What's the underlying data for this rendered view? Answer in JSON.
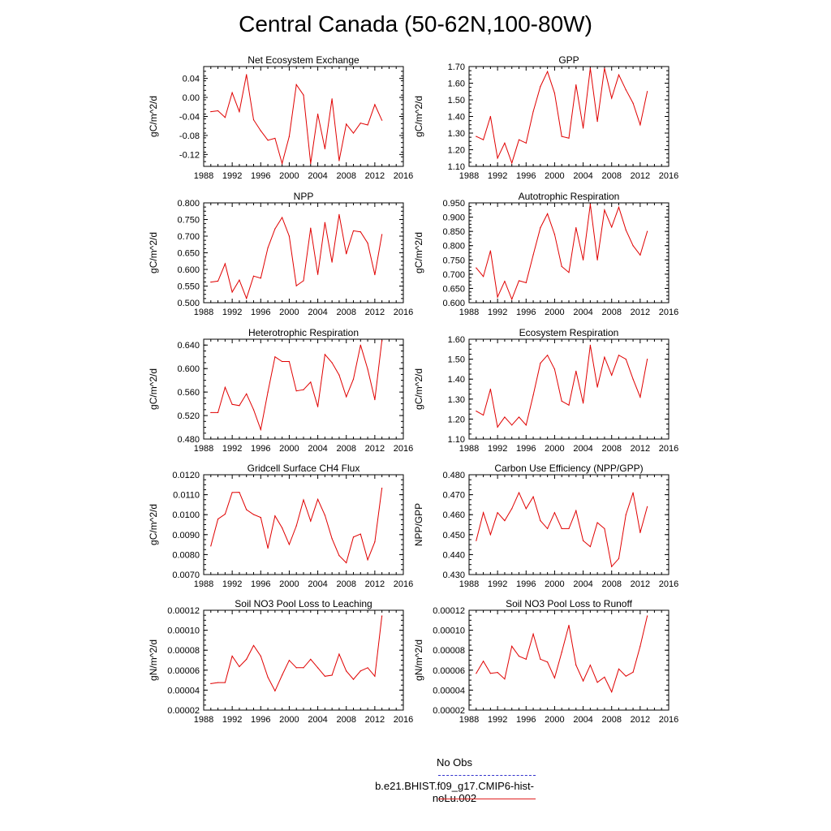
{
  "title": "Central Canada (50-62N,100-80W)",
  "legend": [
    {
      "label": "No Obs",
      "color": "#3333cc",
      "dash": "dashed"
    },
    {
      "label": "b.e21.BHIST.f09_g17.CMIP6-hist-noLu.002",
      "color": "#e02020",
      "dash": "solid"
    }
  ],
  "colors": {
    "series": "#e00000",
    "axis": "#000000"
  },
  "chart_data": [
    {
      "type": "line",
      "title": "Net Ecosystem Exchange",
      "ylabel": "gC/m^2/d",
      "xlim": [
        1988,
        2016
      ],
      "xticks": [
        1988,
        1992,
        1996,
        2000,
        2004,
        2008,
        2012,
        2016
      ],
      "ylim": [
        -0.145,
        0.065
      ],
      "yticks": [
        -0.12,
        -0.08,
        -0.04,
        0.0,
        0.04
      ],
      "ydecimals": 2,
      "series": [
        {
          "x": [
            1989,
            1990,
            1991,
            1992,
            1993,
            1994,
            1995,
            1996,
            1997,
            1998,
            1999,
            2000,
            2001,
            2002,
            2003,
            2004,
            2005,
            2006,
            2007,
            2008,
            2009,
            2010,
            2011,
            2012,
            2013
          ],
          "values": [
            -0.03,
            -0.028,
            -0.042,
            0.01,
            -0.03,
            0.048,
            -0.047,
            -0.07,
            -0.09,
            -0.086,
            -0.139,
            -0.082,
            0.027,
            0.005,
            -0.139,
            -0.035,
            -0.108,
            -0.003,
            -0.133,
            -0.056,
            -0.075,
            -0.054,
            -0.058,
            -0.015,
            -0.048
          ]
        }
      ]
    },
    {
      "type": "line",
      "title": "GPP",
      "ylabel": "gC/m^2/d",
      "xlim": [
        1988,
        2016
      ],
      "xticks": [
        1988,
        1992,
        1996,
        2000,
        2004,
        2008,
        2012,
        2016
      ],
      "ylim": [
        1.1,
        1.7
      ],
      "yticks": [
        1.1,
        1.2,
        1.3,
        1.4,
        1.5,
        1.6,
        1.7
      ],
      "ydecimals": 2,
      "series": [
        {
          "x": [
            1989,
            1990,
            1991,
            1992,
            1993,
            1994,
            1995,
            1996,
            1997,
            1998,
            1999,
            2000,
            2001,
            2002,
            2003,
            2004,
            2005,
            2006,
            2007,
            2008,
            2009,
            2010,
            2011,
            2012,
            2013
          ],
          "values": [
            1.28,
            1.26,
            1.4,
            1.15,
            1.24,
            1.12,
            1.26,
            1.24,
            1.43,
            1.58,
            1.67,
            1.54,
            1.28,
            1.27,
            1.59,
            1.33,
            1.69,
            1.37,
            1.69,
            1.51,
            1.65,
            1.56,
            1.48,
            1.35,
            1.55
          ]
        }
      ]
    },
    {
      "type": "line",
      "title": "NPP",
      "ylabel": "gC/m^2/d",
      "xlim": [
        1988,
        2016
      ],
      "xticks": [
        1988,
        1992,
        1996,
        2000,
        2004,
        2008,
        2012,
        2016
      ],
      "ylim": [
        0.5,
        0.8
      ],
      "yticks": [
        0.5,
        0.55,
        0.6,
        0.65,
        0.7,
        0.75,
        0.8
      ],
      "ydecimals": 3,
      "series": [
        {
          "x": [
            1989,
            1990,
            1991,
            1992,
            1993,
            1994,
            1995,
            1996,
            1997,
            1998,
            1999,
            2000,
            2001,
            2002,
            2003,
            2004,
            2005,
            2006,
            2007,
            2008,
            2009,
            2010,
            2011,
            2012,
            2013
          ],
          "values": [
            0.562,
            0.565,
            0.617,
            0.532,
            0.568,
            0.513,
            0.58,
            0.574,
            0.665,
            0.722,
            0.756,
            0.7,
            0.551,
            0.566,
            0.724,
            0.585,
            0.741,
            0.622,
            0.765,
            0.647,
            0.716,
            0.713,
            0.679,
            0.584,
            0.705
          ]
        }
      ]
    },
    {
      "type": "line",
      "title": "Autotrophic Respiration",
      "ylabel": "gC/m^2/d",
      "xlim": [
        1988,
        2016
      ],
      "xticks": [
        1988,
        1992,
        1996,
        2000,
        2004,
        2008,
        2012,
        2016
      ],
      "ylim": [
        0.6,
        0.95
      ],
      "yticks": [
        0.6,
        0.65,
        0.7,
        0.75,
        0.8,
        0.85,
        0.9,
        0.95
      ],
      "ydecimals": 3,
      "series": [
        {
          "x": [
            1989,
            1990,
            1991,
            1992,
            1993,
            1994,
            1995,
            1996,
            1997,
            1998,
            1999,
            2000,
            2001,
            2002,
            2003,
            2004,
            2005,
            2006,
            2007,
            2008,
            2009,
            2010,
            2011,
            2012,
            2013
          ],
          "values": [
            0.722,
            0.692,
            0.782,
            0.62,
            0.675,
            0.612,
            0.677,
            0.67,
            0.768,
            0.863,
            0.912,
            0.84,
            0.727,
            0.706,
            0.863,
            0.75,
            0.945,
            0.75,
            0.925,
            0.865,
            0.935,
            0.855,
            0.8,
            0.767,
            0.85
          ]
        }
      ]
    },
    {
      "type": "line",
      "title": "Heterotrophic Respiration",
      "ylabel": "gC/m^2/d",
      "xlim": [
        1988,
        2016
      ],
      "xticks": [
        1988,
        1992,
        1996,
        2000,
        2004,
        2008,
        2012,
        2016
      ],
      "ylim": [
        0.48,
        0.65
      ],
      "yticks": [
        0.48,
        0.52,
        0.56,
        0.6,
        0.64
      ],
      "ydecimals": 3,
      "series": [
        {
          "x": [
            1989,
            1990,
            1991,
            1992,
            1993,
            1994,
            1995,
            1996,
            1997,
            1998,
            1999,
            2000,
            2001,
            2002,
            2003,
            2004,
            2005,
            2006,
            2007,
            2008,
            2009,
            2010,
            2011,
            2012,
            2013
          ],
          "values": [
            0.525,
            0.525,
            0.568,
            0.539,
            0.537,
            0.557,
            0.53,
            0.496,
            0.56,
            0.62,
            0.612,
            0.612,
            0.562,
            0.564,
            0.577,
            0.535,
            0.624,
            0.61,
            0.589,
            0.552,
            0.582,
            0.64,
            0.599,
            0.547,
            0.648
          ]
        }
      ]
    },
    {
      "type": "line",
      "title": "Ecosystem Respiration",
      "ylabel": "gC/m^2/d",
      "xlim": [
        1988,
        2016
      ],
      "xticks": [
        1988,
        1992,
        1996,
        2000,
        2004,
        2008,
        2012,
        2016
      ],
      "ylim": [
        1.1,
        1.6
      ],
      "yticks": [
        1.1,
        1.2,
        1.3,
        1.4,
        1.5,
        1.6
      ],
      "ydecimals": 2,
      "series": [
        {
          "x": [
            1989,
            1990,
            1991,
            1992,
            1993,
            1994,
            1995,
            1996,
            1997,
            1998,
            1999,
            2000,
            2001,
            2002,
            2003,
            2004,
            2005,
            2006,
            2007,
            2008,
            2009,
            2010,
            2011,
            2012,
            2013
          ],
          "values": [
            1.24,
            1.22,
            1.35,
            1.16,
            1.21,
            1.17,
            1.21,
            1.17,
            1.32,
            1.48,
            1.52,
            1.45,
            1.29,
            1.27,
            1.44,
            1.28,
            1.57,
            1.36,
            1.51,
            1.42,
            1.52,
            1.5,
            1.4,
            1.31,
            1.5
          ]
        }
      ]
    },
    {
      "type": "line",
      "title": "Gridcell Surface CH4 Flux",
      "ylabel": "gC/m^2/d",
      "xlim": [
        1988,
        2016
      ],
      "xticks": [
        1988,
        1992,
        1996,
        2000,
        2004,
        2008,
        2012,
        2016
      ],
      "ylim": [
        0.007,
        0.012
      ],
      "yticks": [
        0.007,
        0.008,
        0.009,
        0.01,
        0.011,
        0.012
      ],
      "ydecimals": 4,
      "series": [
        {
          "x": [
            1989,
            1990,
            1991,
            1992,
            1993,
            1994,
            1995,
            1996,
            1997,
            1998,
            1999,
            2000,
            2001,
            2002,
            2003,
            2004,
            2005,
            2006,
            2007,
            2008,
            2009,
            2010,
            2011,
            2012,
            2013
          ],
          "values": [
            0.00843,
            0.00978,
            0.01003,
            0.01111,
            0.01112,
            0.01025,
            0.01001,
            0.00986,
            0.00832,
            0.00994,
            0.00934,
            0.00851,
            0.00944,
            0.01074,
            0.00968,
            0.01077,
            0.00997,
            0.0088,
            0.00795,
            0.00759,
            0.00888,
            0.00903,
            0.00774,
            0.00864,
            0.01133
          ]
        }
      ]
    },
    {
      "type": "line",
      "title": "Carbon Use Efficiency (NPP/GPP)",
      "ylabel": "NPP/GPP",
      "xlim": [
        1988,
        2016
      ],
      "xticks": [
        1988,
        1992,
        1996,
        2000,
        2004,
        2008,
        2012,
        2016
      ],
      "ylim": [
        0.43,
        0.48
      ],
      "yticks": [
        0.43,
        0.44,
        0.45,
        0.46,
        0.47,
        0.48
      ],
      "ydecimals": 3,
      "series": [
        {
          "x": [
            1989,
            1990,
            1991,
            1992,
            1993,
            1994,
            1995,
            1996,
            1997,
            1998,
            1999,
            2000,
            2001,
            2002,
            2003,
            2004,
            2005,
            2006,
            2007,
            2008,
            2009,
            2010,
            2011,
            2012,
            2013
          ],
          "values": [
            0.447,
            0.461,
            0.45,
            0.461,
            0.457,
            0.463,
            0.471,
            0.463,
            0.469,
            0.457,
            0.453,
            0.461,
            0.453,
            0.453,
            0.462,
            0.447,
            0.444,
            0.456,
            0.453,
            0.434,
            0.438,
            0.46,
            0.471,
            0.451,
            0.464
          ]
        }
      ]
    },
    {
      "type": "line",
      "title": "Soil NO3 Pool Loss to Leaching",
      "ylabel": "gN/m^2/d",
      "xlim": [
        1988,
        2016
      ],
      "xticks": [
        1988,
        1992,
        1996,
        2000,
        2004,
        2008,
        2012,
        2016
      ],
      "ylim": [
        2e-05,
        0.00012
      ],
      "yticks": [
        2e-05,
        4e-05,
        6e-05,
        8e-05,
        0.0001,
        0.00012
      ],
      "ydecimals": 5,
      "series": [
        {
          "x": [
            1989,
            1990,
            1991,
            1992,
            1993,
            1994,
            1995,
            1996,
            1997,
            1998,
            1999,
            2000,
            2001,
            2002,
            2003,
            2004,
            2005,
            2006,
            2007,
            2008,
            2009,
            2010,
            2011,
            2012,
            2013
          ],
          "values": [
            4.65e-05,
            4.76e-05,
            4.76e-05,
            7.41e-05,
            6.35e-05,
            7.09e-05,
            8.47e-05,
            7.41e-05,
            5.29e-05,
            3.92e-05,
            5.5e-05,
            6.98e-05,
            6.24e-05,
            6.24e-05,
            7.09e-05,
            6.24e-05,
            5.39e-05,
            5.5e-05,
            7.61e-05,
            5.92e-05,
            5.08e-05,
            5.92e-05,
            6.24e-05,
            5.39e-05,
            0.0001143
          ]
        }
      ]
    },
    {
      "type": "line",
      "title": "Soil NO3 Pool Loss to Runoff",
      "ylabel": "gN/m^2/d",
      "xlim": [
        1988,
        2016
      ],
      "xticks": [
        1988,
        1992,
        1996,
        2000,
        2004,
        2008,
        2012,
        2016
      ],
      "ylim": [
        2e-05,
        0.00012
      ],
      "yticks": [
        2e-05,
        4e-05,
        6e-05,
        8e-05,
        0.0001,
        0.00012
      ],
      "ydecimals": 5,
      "series": [
        {
          "x": [
            1989,
            1990,
            1991,
            1992,
            1993,
            1994,
            1995,
            1996,
            1997,
            1998,
            1999,
            2000,
            2001,
            2002,
            2003,
            2004,
            2005,
            2006,
            2007,
            2008,
            2009,
            2010,
            2011,
            2012,
            2013
          ],
          "values": [
            5.68e-05,
            6.9e-05,
            5.68e-05,
            5.77e-05,
            5.11e-05,
            8.4e-05,
            7.4e-05,
            7.1e-05,
            9.62e-05,
            7.1e-05,
            6.81e-05,
            5.22e-05,
            7.8e-05,
            0.000105,
            6.5e-05,
            4.92e-05,
            6.5e-05,
            4.78e-05,
            5.3e-05,
            3.82e-05,
            6.12e-05,
            5.4e-05,
            5.8e-05,
            8.4e-05,
            0.0001143
          ]
        }
      ]
    }
  ]
}
